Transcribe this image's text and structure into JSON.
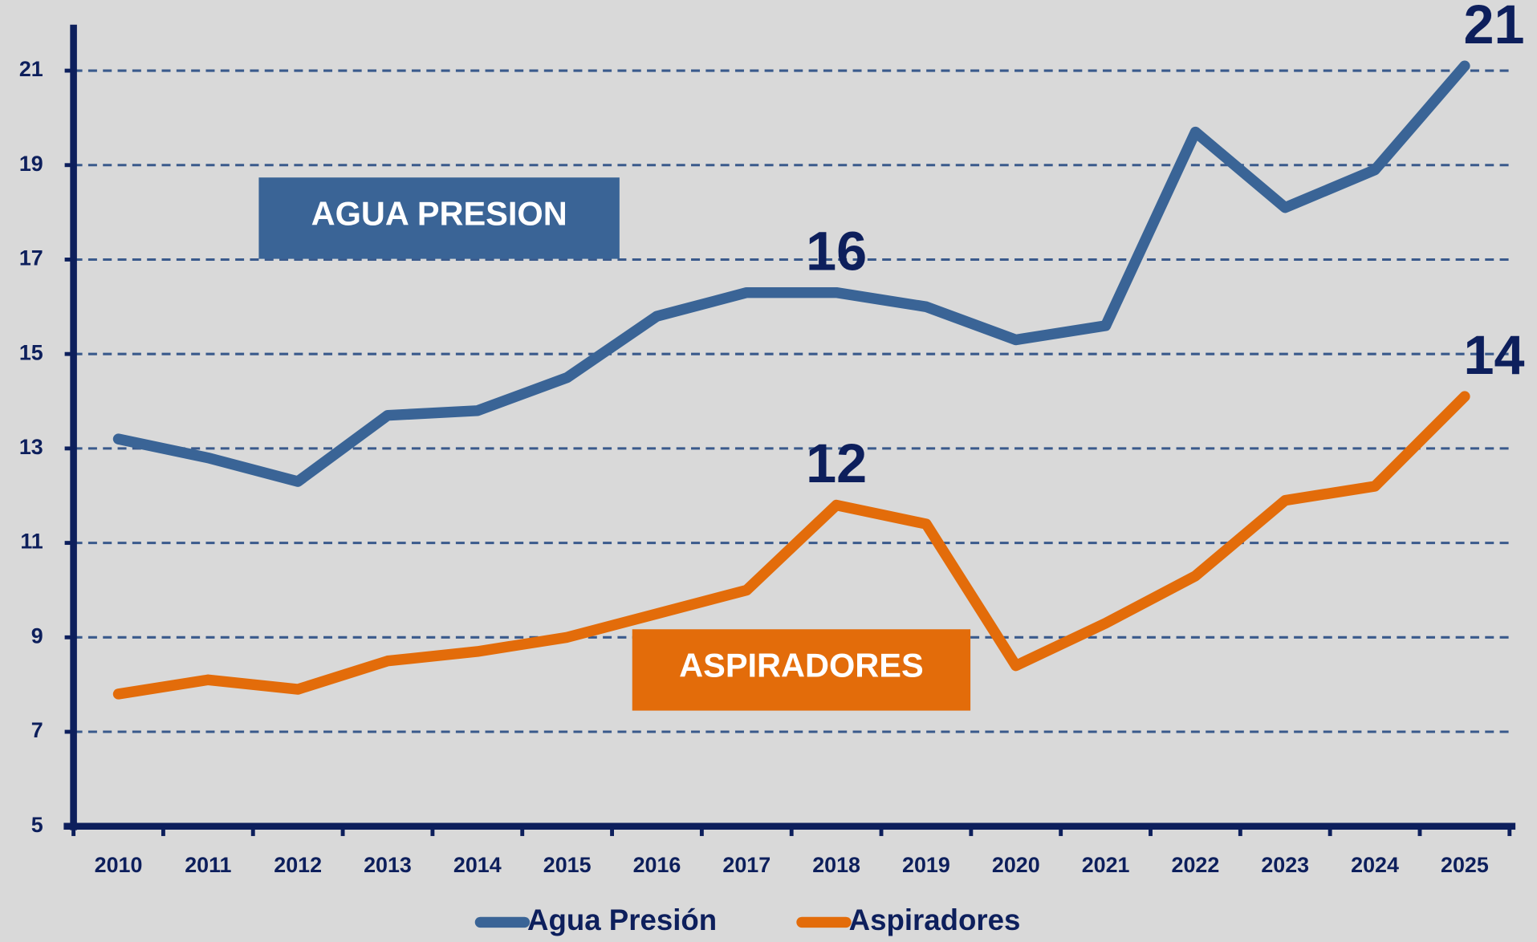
{
  "chart_data": {
    "type": "line",
    "categories": [
      "2010",
      "2011",
      "2012",
      "2013",
      "2014",
      "2015",
      "2016",
      "2017",
      "2018",
      "2019",
      "2020",
      "2021",
      "2022",
      "2023",
      "2024",
      "2025"
    ],
    "series": [
      {
        "name": "Agua Presión",
        "color": "#3a6496",
        "values": [
          13.2,
          12.8,
          12.3,
          13.7,
          13.8,
          14.5,
          15.8,
          16.3,
          16.3,
          16.0,
          15.3,
          15.6,
          19.7,
          18.1,
          18.9,
          21.1
        ],
        "value_labels": [
          null,
          null,
          null,
          null,
          null,
          null,
          null,
          null,
          "16",
          null,
          null,
          null,
          null,
          null,
          null,
          "21"
        ]
      },
      {
        "name": "Aspiradores",
        "color": "#e36c0a",
        "values": [
          7.8,
          8.1,
          7.9,
          8.5,
          8.7,
          9.0,
          9.5,
          10.0,
          11.8,
          11.4,
          8.4,
          9.3,
          10.3,
          11.9,
          12.2,
          14.1
        ],
        "value_labels": [
          null,
          null,
          null,
          null,
          null,
          null,
          null,
          null,
          "12",
          null,
          null,
          null,
          null,
          null,
          null,
          "14"
        ]
      }
    ],
    "annotations": [
      {
        "text": "AGUA PRESION",
        "color": "#3a6496"
      },
      {
        "text": "ASPIRADORES",
        "color": "#e36c0a"
      }
    ],
    "ylim": [
      5,
      22
    ],
    "yticks": [
      5,
      7,
      9,
      11,
      13,
      15,
      17,
      19,
      21
    ],
    "grid": true
  }
}
